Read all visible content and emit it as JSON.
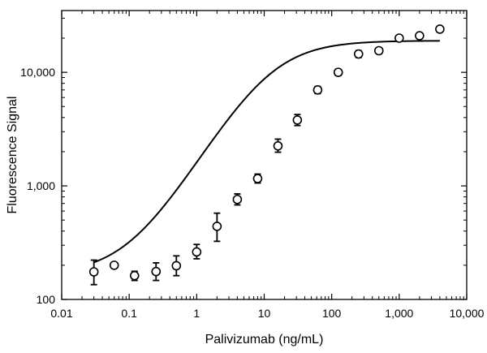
{
  "chart_data": {
    "type": "scatter",
    "x_scale": "log",
    "y_scale": "log",
    "xlabel": "Palivizumab (ng/mL)",
    "ylabel": "Fluorescence Signal",
    "xlim": [
      0.01,
      10000
    ],
    "ylim": [
      100,
      35000
    ],
    "x_ticks": [
      {
        "value": 0.01,
        "label": "0.01"
      },
      {
        "value": 0.1,
        "label": "0.1"
      },
      {
        "value": 1,
        "label": "1"
      },
      {
        "value": 10,
        "label": "10"
      },
      {
        "value": 100,
        "label": "100"
      },
      {
        "value": 1000,
        "label": "1,000"
      },
      {
        "value": 10000,
        "label": "10,000"
      }
    ],
    "y_ticks": [
      {
        "value": 100,
        "label": "100"
      },
      {
        "value": 1000,
        "label": "1,000"
      },
      {
        "value": 10000,
        "label": "10,000"
      }
    ],
    "grid": false,
    "legend": "none",
    "points": [
      {
        "x": 0.03,
        "y": 175,
        "err_low": 135,
        "err_high": 222
      },
      {
        "x": 0.06,
        "y": 200,
        "err_low": 192,
        "err_high": 208
      },
      {
        "x": 0.12,
        "y": 162,
        "err_low": 147,
        "err_high": 177
      },
      {
        "x": 0.25,
        "y": 176,
        "err_low": 147,
        "err_high": 210
      },
      {
        "x": 0.5,
        "y": 198,
        "err_low": 162,
        "err_high": 242
      },
      {
        "x": 1,
        "y": 262,
        "err_low": 228,
        "err_high": 305
      },
      {
        "x": 2,
        "y": 440,
        "err_low": 325,
        "err_high": 575
      },
      {
        "x": 4,
        "y": 760,
        "err_low": 680,
        "err_high": 850
      },
      {
        "x": 8,
        "y": 1160,
        "err_low": 1060,
        "err_high": 1270
      },
      {
        "x": 16,
        "y": 2250,
        "err_low": 1980,
        "err_high": 2580
      },
      {
        "x": 31,
        "y": 3800,
        "err_low": 3400,
        "err_high": 4250
      },
      {
        "x": 62,
        "y": 7000,
        "err_low": 6500,
        "err_high": 7500
      },
      {
        "x": 125,
        "y": 10000,
        "err_low": 9400,
        "err_high": 10600
      },
      {
        "x": 250,
        "y": 14500,
        "err_low": 13500,
        "err_high": 15500
      },
      {
        "x": 500,
        "y": 15500,
        "err_low": 14600,
        "err_high": 16400
      },
      {
        "x": 1000,
        "y": 20000,
        "err_low": 19200,
        "err_high": 20800
      },
      {
        "x": 2000,
        "y": 21000,
        "err_low": 19800,
        "err_high": 22200
      },
      {
        "x": 4000,
        "y": 24000,
        "err_low": 23200,
        "err_high": 24800
      }
    ],
    "fit_curve": {
      "model": "4PL",
      "bottom": 165,
      "top": 19000,
      "ec50": 12,
      "hill": 1.0,
      "x_range": [
        0.03,
        4000
      ]
    },
    "colors": {
      "marker_fill": "#ffffff",
      "marker_stroke": "#000000",
      "curve": "#000000",
      "axis": "#000000"
    }
  }
}
